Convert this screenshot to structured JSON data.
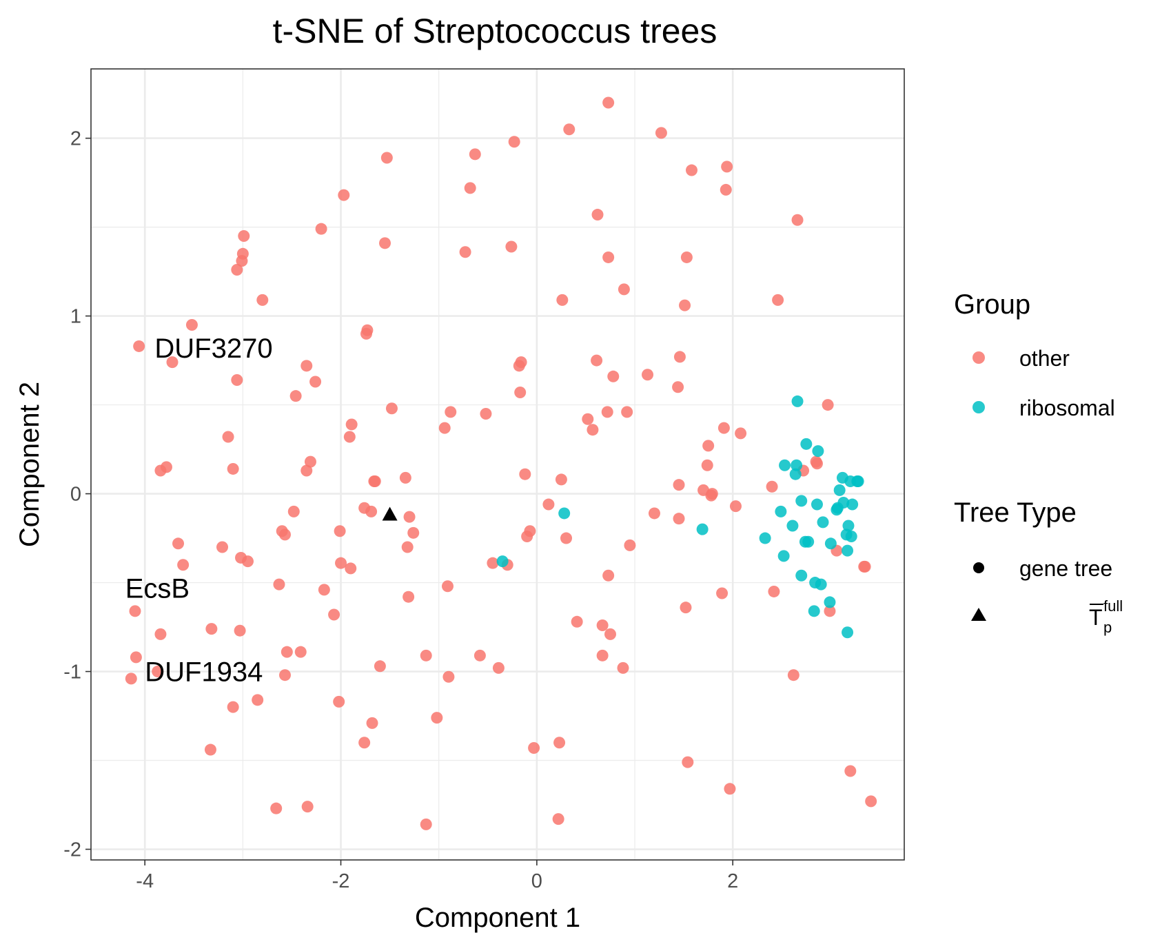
{
  "chart_data": {
    "type": "scatter",
    "title": "t-SNE of Streptococcus trees",
    "xlabel": "Component 1",
    "ylabel": "Component 2",
    "xlim": [
      -4.55,
      3.75
    ],
    "ylim": [
      -2.06,
      2.39
    ],
    "xticks": [
      -4,
      -2,
      0,
      2
    ],
    "yticks": [
      -2,
      -1,
      0,
      1,
      2
    ],
    "xtick_labels": [
      "-4",
      "-2",
      "0",
      "2"
    ],
    "ytick_labels": [
      "-2",
      "-1",
      "0",
      "1",
      "2"
    ],
    "grid": true,
    "legend_position": "right",
    "colors": {
      "other": "#F8766D",
      "ribosomal": "#00BFC4",
      "marker": "#000000"
    },
    "legend": {
      "group_title": "Group",
      "group_items": [
        "other",
        "ribosomal"
      ],
      "type_title": "Tree Type",
      "type_items": [
        {
          "label": "gene tree",
          "shape": "circle"
        },
        {
          "label_main": "T",
          "label_sup": "full",
          "label_sub": "p",
          "shape": "triangle"
        }
      ]
    },
    "annotations": [
      {
        "text": "DUF3270",
        "x": -3.9,
        "y": 0.82
      },
      {
        "text": "EcsB",
        "x": -4.2,
        "y": -0.53
      },
      {
        "text": "DUF1934",
        "x": -4.0,
        "y": -1.0
      }
    ],
    "series": [
      {
        "name": "other",
        "shape": "circle",
        "points": [
          [
            0.73,
            2.2
          ],
          [
            0.33,
            2.05
          ],
          [
            1.27,
            2.03
          ],
          [
            -0.23,
            1.98
          ],
          [
            -0.63,
            1.91
          ],
          [
            -1.53,
            1.89
          ],
          [
            1.58,
            1.82
          ],
          [
            1.94,
            1.84
          ],
          [
            -0.68,
            1.72
          ],
          [
            -1.97,
            1.68
          ],
          [
            1.93,
            1.71
          ],
          [
            0.62,
            1.57
          ],
          [
            2.66,
            1.54
          ],
          [
            -2.2,
            1.49
          ],
          [
            -2.99,
            1.45
          ],
          [
            -1.55,
            1.41
          ],
          [
            -0.26,
            1.39
          ],
          [
            -0.73,
            1.36
          ],
          [
            -3.0,
            1.35
          ],
          [
            -3.01,
            1.31
          ],
          [
            0.73,
            1.33
          ],
          [
            1.53,
            1.33
          ],
          [
            -3.06,
            1.26
          ],
          [
            0.89,
            1.15
          ],
          [
            -2.8,
            1.09
          ],
          [
            0.26,
            1.09
          ],
          [
            1.51,
            1.06
          ],
          [
            2.46,
            1.09
          ],
          [
            -3.52,
            0.95
          ],
          [
            -1.73,
            0.92
          ],
          [
            -1.74,
            0.9
          ],
          [
            -4.06,
            0.83
          ],
          [
            -3.72,
            0.74
          ],
          [
            -2.35,
            0.72
          ],
          [
            -0.18,
            0.72
          ],
          [
            -0.16,
            0.74
          ],
          [
            0.61,
            0.75
          ],
          [
            1.46,
            0.77
          ],
          [
            -3.06,
            0.64
          ],
          [
            -2.26,
            0.63
          ],
          [
            0.78,
            0.66
          ],
          [
            1.13,
            0.67
          ],
          [
            1.44,
            0.6
          ],
          [
            -0.17,
            0.57
          ],
          [
            -2.46,
            0.55
          ],
          [
            -1.48,
            0.48
          ],
          [
            -0.88,
            0.46
          ],
          [
            -0.52,
            0.45
          ],
          [
            0.72,
            0.46
          ],
          [
            0.92,
            0.46
          ],
          [
            2.97,
            0.5
          ],
          [
            -1.89,
            0.39
          ],
          [
            0.52,
            0.42
          ],
          [
            -0.94,
            0.37
          ],
          [
            0.57,
            0.36
          ],
          [
            1.91,
            0.37
          ],
          [
            2.08,
            0.34
          ],
          [
            -1.91,
            0.32
          ],
          [
            -3.15,
            0.32
          ],
          [
            1.75,
            0.27
          ],
          [
            -2.31,
            0.18
          ],
          [
            -3.78,
            0.15
          ],
          [
            -3.84,
            0.13
          ],
          [
            -3.1,
            0.14
          ],
          [
            -2.35,
            0.13
          ],
          [
            2.85,
            0.18
          ],
          [
            2.86,
            0.17
          ],
          [
            1.74,
            0.16
          ],
          [
            -0.12,
            0.11
          ],
          [
            -1.66,
            0.07
          ],
          [
            -1.65,
            0.07
          ],
          [
            -1.34,
            0.09
          ],
          [
            0.25,
            0.08
          ],
          [
            1.45,
            0.05
          ],
          [
            2.72,
            0.13
          ],
          [
            2.4,
            0.04
          ],
          [
            1.7,
            0.02
          ],
          [
            1.79,
            0.0
          ],
          [
            1.78,
            -0.01
          ],
          [
            0.12,
            -0.06
          ],
          [
            2.03,
            -0.07
          ],
          [
            -1.76,
            -0.08
          ],
          [
            -1.69,
            -0.1
          ],
          [
            -2.48,
            -0.1
          ],
          [
            -1.3,
            -0.13
          ],
          [
            1.2,
            -0.11
          ],
          [
            1.45,
            -0.14
          ],
          [
            -2.01,
            -0.21
          ],
          [
            -0.07,
            -0.21
          ],
          [
            -0.1,
            -0.24
          ],
          [
            0.3,
            -0.25
          ],
          [
            -2.6,
            -0.21
          ],
          [
            -2.57,
            -0.23
          ],
          [
            -1.26,
            -0.22
          ],
          [
            -3.66,
            -0.28
          ],
          [
            -3.21,
            -0.3
          ],
          [
            -1.32,
            -0.3
          ],
          [
            0.95,
            -0.29
          ],
          [
            3.06,
            -0.32
          ],
          [
            -3.02,
            -0.36
          ],
          [
            -2.95,
            -0.38
          ],
          [
            -3.61,
            -0.4
          ],
          [
            -2.0,
            -0.39
          ],
          [
            -1.9,
            -0.42
          ],
          [
            -0.45,
            -0.39
          ],
          [
            -0.3,
            -0.4
          ],
          [
            3.34,
            -0.41
          ],
          [
            3.35,
            -0.41
          ],
          [
            0.73,
            -0.46
          ],
          [
            -2.63,
            -0.51
          ],
          [
            -0.91,
            -0.52
          ],
          [
            -2.17,
            -0.54
          ],
          [
            -1.31,
            -0.58
          ],
          [
            1.89,
            -0.56
          ],
          [
            2.42,
            -0.55
          ],
          [
            1.52,
            -0.64
          ],
          [
            2.99,
            -0.66
          ],
          [
            -4.1,
            -0.66
          ],
          [
            -2.07,
            -0.68
          ],
          [
            0.41,
            -0.72
          ],
          [
            -3.32,
            -0.76
          ],
          [
            -3.03,
            -0.77
          ],
          [
            0.67,
            -0.74
          ],
          [
            0.75,
            -0.79
          ],
          [
            -3.84,
            -0.79
          ],
          [
            -2.55,
            -0.89
          ],
          [
            -2.41,
            -0.89
          ],
          [
            -1.13,
            -0.91
          ],
          [
            -0.58,
            -0.91
          ],
          [
            0.67,
            -0.91
          ],
          [
            -4.09,
            -0.92
          ],
          [
            -1.6,
            -0.97
          ],
          [
            -0.39,
            -0.98
          ],
          [
            0.88,
            -0.98
          ],
          [
            -3.87,
            -1.0
          ],
          [
            -4.14,
            -1.04
          ],
          [
            -2.57,
            -1.02
          ],
          [
            -0.9,
            -1.03
          ],
          [
            2.62,
            -1.02
          ],
          [
            -2.85,
            -1.16
          ],
          [
            -2.02,
            -1.17
          ],
          [
            -3.1,
            -1.2
          ],
          [
            -1.02,
            -1.26
          ],
          [
            -1.68,
            -1.29
          ],
          [
            -1.76,
            -1.4
          ],
          [
            0.23,
            -1.4
          ],
          [
            -0.03,
            -1.43
          ],
          [
            -3.33,
            -1.44
          ],
          [
            1.54,
            -1.51
          ],
          [
            3.2,
            -1.56
          ],
          [
            1.97,
            -1.66
          ],
          [
            3.41,
            -1.73
          ],
          [
            -2.66,
            -1.77
          ],
          [
            -2.34,
            -1.76
          ],
          [
            -1.13,
            -1.86
          ],
          [
            0.22,
            -1.83
          ]
        ]
      },
      {
        "name": "ribosomal",
        "shape": "circle",
        "points": [
          [
            2.66,
            0.52
          ],
          [
            2.75,
            0.28
          ],
          [
            2.87,
            0.24
          ],
          [
            2.53,
            0.16
          ],
          [
            2.65,
            0.16
          ],
          [
            2.64,
            0.11
          ],
          [
            3.12,
            0.09
          ],
          [
            3.2,
            0.07
          ],
          [
            3.27,
            0.07
          ],
          [
            3.28,
            0.07
          ],
          [
            3.09,
            0.02
          ],
          [
            2.7,
            -0.04
          ],
          [
            3.13,
            -0.05
          ],
          [
            3.22,
            -0.06
          ],
          [
            2.86,
            -0.06
          ],
          [
            3.07,
            -0.08
          ],
          [
            3.06,
            -0.09
          ],
          [
            2.49,
            -0.1
          ],
          [
            0.28,
            -0.11
          ],
          [
            2.92,
            -0.16
          ],
          [
            2.61,
            -0.18
          ],
          [
            3.18,
            -0.18
          ],
          [
            1.69,
            -0.2
          ],
          [
            3.16,
            -0.23
          ],
          [
            3.21,
            -0.24
          ],
          [
            2.33,
            -0.25
          ],
          [
            2.77,
            -0.27
          ],
          [
            2.74,
            -0.27
          ],
          [
            3.0,
            -0.28
          ],
          [
            3.17,
            -0.32
          ],
          [
            2.52,
            -0.35
          ],
          [
            -0.35,
            -0.38
          ],
          [
            2.7,
            -0.46
          ],
          [
            2.9,
            -0.51
          ],
          [
            2.84,
            -0.5
          ],
          [
            2.99,
            -0.61
          ],
          [
            2.83,
            -0.66
          ],
          [
            3.17,
            -0.78
          ]
        ]
      },
      {
        "name": "",
        "shape": "triangle",
        "points": [
          [
            -1.5,
            -0.12
          ]
        ]
      }
    ]
  }
}
